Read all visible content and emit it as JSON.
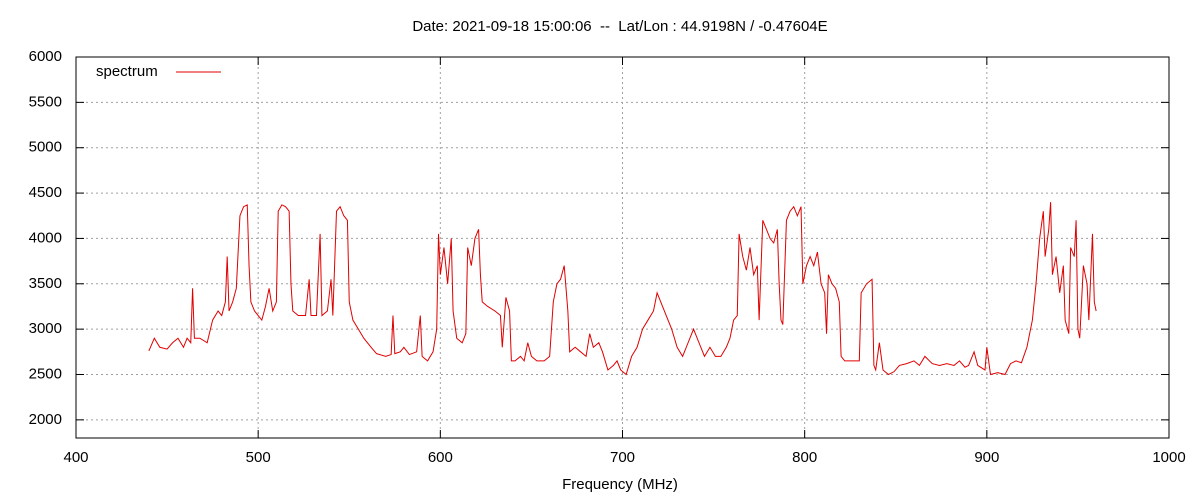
{
  "chart_data": {
    "type": "line",
    "title": "Date: 2021-09-18 15:00:06  --  Lat/Lon : 44.9198N / -0.47604E",
    "x_label": "Frequency (MHz)",
    "xlim": [
      400,
      1000
    ],
    "xticks": [
      400,
      500,
      600,
      700,
      800,
      900,
      1000
    ],
    "ylim": [
      1800,
      6000
    ],
    "yticks": [
      2000,
      2500,
      3000,
      3500,
      4000,
      4500,
      5000,
      5500,
      6000
    ],
    "grid": true,
    "legend": "top-left",
    "x": [
      440,
      443,
      446,
      450,
      453,
      456,
      459,
      461,
      463,
      464,
      465,
      468,
      472,
      475,
      478,
      480,
      482,
      483,
      484,
      486,
      488,
      490,
      492,
      494,
      495,
      496,
      498,
      500,
      502,
      504,
      506,
      508,
      510,
      511,
      513,
      515,
      517,
      518,
      519,
      522,
      526,
      528,
      529,
      532,
      534,
      535,
      538,
      540,
      541,
      543,
      545,
      547,
      549,
      550,
      552,
      555,
      558,
      562,
      565,
      570,
      573,
      574,
      575,
      578,
      580,
      583,
      587,
      589,
      590,
      593,
      596,
      598,
      599,
      600,
      602,
      604,
      606,
      607,
      609,
      612,
      614,
      615,
      617,
      619,
      621,
      622,
      623,
      626,
      630,
      633,
      634,
      636,
      638,
      639,
      641,
      644,
      646,
      648,
      650,
      653,
      657,
      660,
      662,
      664,
      666,
      668,
      670,
      671,
      674,
      677,
      680,
      682,
      684,
      687,
      689,
      692,
      695,
      697,
      699,
      702,
      705,
      708,
      711,
      714,
      717,
      719,
      721,
      724,
      727,
      730,
      733,
      736,
      739,
      742,
      745,
      748,
      751,
      754,
      757,
      759,
      761,
      763,
      764,
      766,
      768,
      770,
      772,
      774,
      775,
      777,
      779,
      781,
      783,
      785,
      786,
      787,
      788,
      790,
      792,
      794,
      796,
      798,
      799,
      801,
      803,
      805,
      807,
      809,
      811,
      812,
      813,
      815,
      817,
      819,
      820,
      822,
      826,
      830,
      831,
      834,
      837,
      838,
      839,
      841,
      843,
      846,
      849,
      852,
      856,
      860,
      863,
      866,
      870,
      874,
      878,
      882,
      885,
      888,
      890,
      893,
      895,
      899,
      900,
      902,
      906,
      910,
      913,
      916,
      919,
      922,
      925,
      927,
      929,
      931,
      932,
      934,
      935,
      936,
      938,
      940,
      942,
      943,
      945,
      946,
      948,
      949,
      950,
      951,
      953,
      955,
      956,
      958,
      959,
      960
    ],
    "series": [
      {
        "name": "spectrum",
        "color": "#e00000",
        "values": [
          2760,
          2900,
          2800,
          2780,
          2850,
          2900,
          2800,
          2900,
          2850,
          3450,
          2900,
          2900,
          2850,
          3100,
          3200,
          3150,
          3300,
          3800,
          3200,
          3300,
          3450,
          4250,
          4350,
          4370,
          3700,
          3300,
          3200,
          3150,
          3100,
          3250,
          3450,
          3200,
          3300,
          4300,
          4370,
          4350,
          4300,
          3500,
          3200,
          3150,
          3150,
          3550,
          3150,
          3150,
          4050,
          3150,
          3200,
          3550,
          3150,
          4300,
          4350,
          4250,
          4200,
          3300,
          3100,
          3000,
          2900,
          2800,
          2730,
          2700,
          2720,
          3150,
          2730,
          2750,
          2800,
          2720,
          2750,
          3150,
          2700,
          2650,
          2750,
          3000,
          4050,
          3600,
          3900,
          3500,
          4000,
          3200,
          2900,
          2850,
          2950,
          3900,
          3700,
          4000,
          4100,
          3600,
          3300,
          3250,
          3200,
          3150,
          2800,
          3350,
          3200,
          2650,
          2650,
          2700,
          2650,
          2850,
          2700,
          2650,
          2650,
          2700,
          3300,
          3500,
          3550,
          3700,
          3200,
          2750,
          2800,
          2750,
          2700,
          2950,
          2800,
          2850,
          2750,
          2550,
          2600,
          2650,
          2550,
          2500,
          2700,
          2800,
          3000,
          3100,
          3200,
          3400,
          3300,
          3150,
          3000,
          2800,
          2700,
          2850,
          3000,
          2850,
          2700,
          2800,
          2700,
          2700,
          2800,
          2900,
          3100,
          3150,
          4050,
          3800,
          3650,
          3900,
          3600,
          3700,
          3100,
          4200,
          4100,
          4000,
          3950,
          4100,
          3500,
          3100,
          3050,
          4200,
          4300,
          4350,
          4250,
          4350,
          3500,
          3700,
          3800,
          3700,
          3850,
          3500,
          3400,
          2950,
          3600,
          3500,
          3450,
          3300,
          2700,
          2650,
          2650,
          2650,
          3400,
          3500,
          3550,
          2600,
          2550,
          2850,
          2550,
          2500,
          2530,
          2600,
          2620,
          2650,
          2600,
          2700,
          2620,
          2600,
          2620,
          2600,
          2650,
          2580,
          2600,
          2750,
          2600,
          2550,
          2800,
          2500,
          2520,
          2500,
          2620,
          2650,
          2630,
          2800,
          3100,
          3500,
          4000,
          4300,
          3800,
          4100,
          4400,
          3600,
          3800,
          3400,
          3700,
          3100,
          2950,
          3900,
          3800,
          4200,
          3000,
          2900,
          3700,
          3500,
          3100,
          4050,
          3300,
          3200
        ]
      }
    ]
  }
}
